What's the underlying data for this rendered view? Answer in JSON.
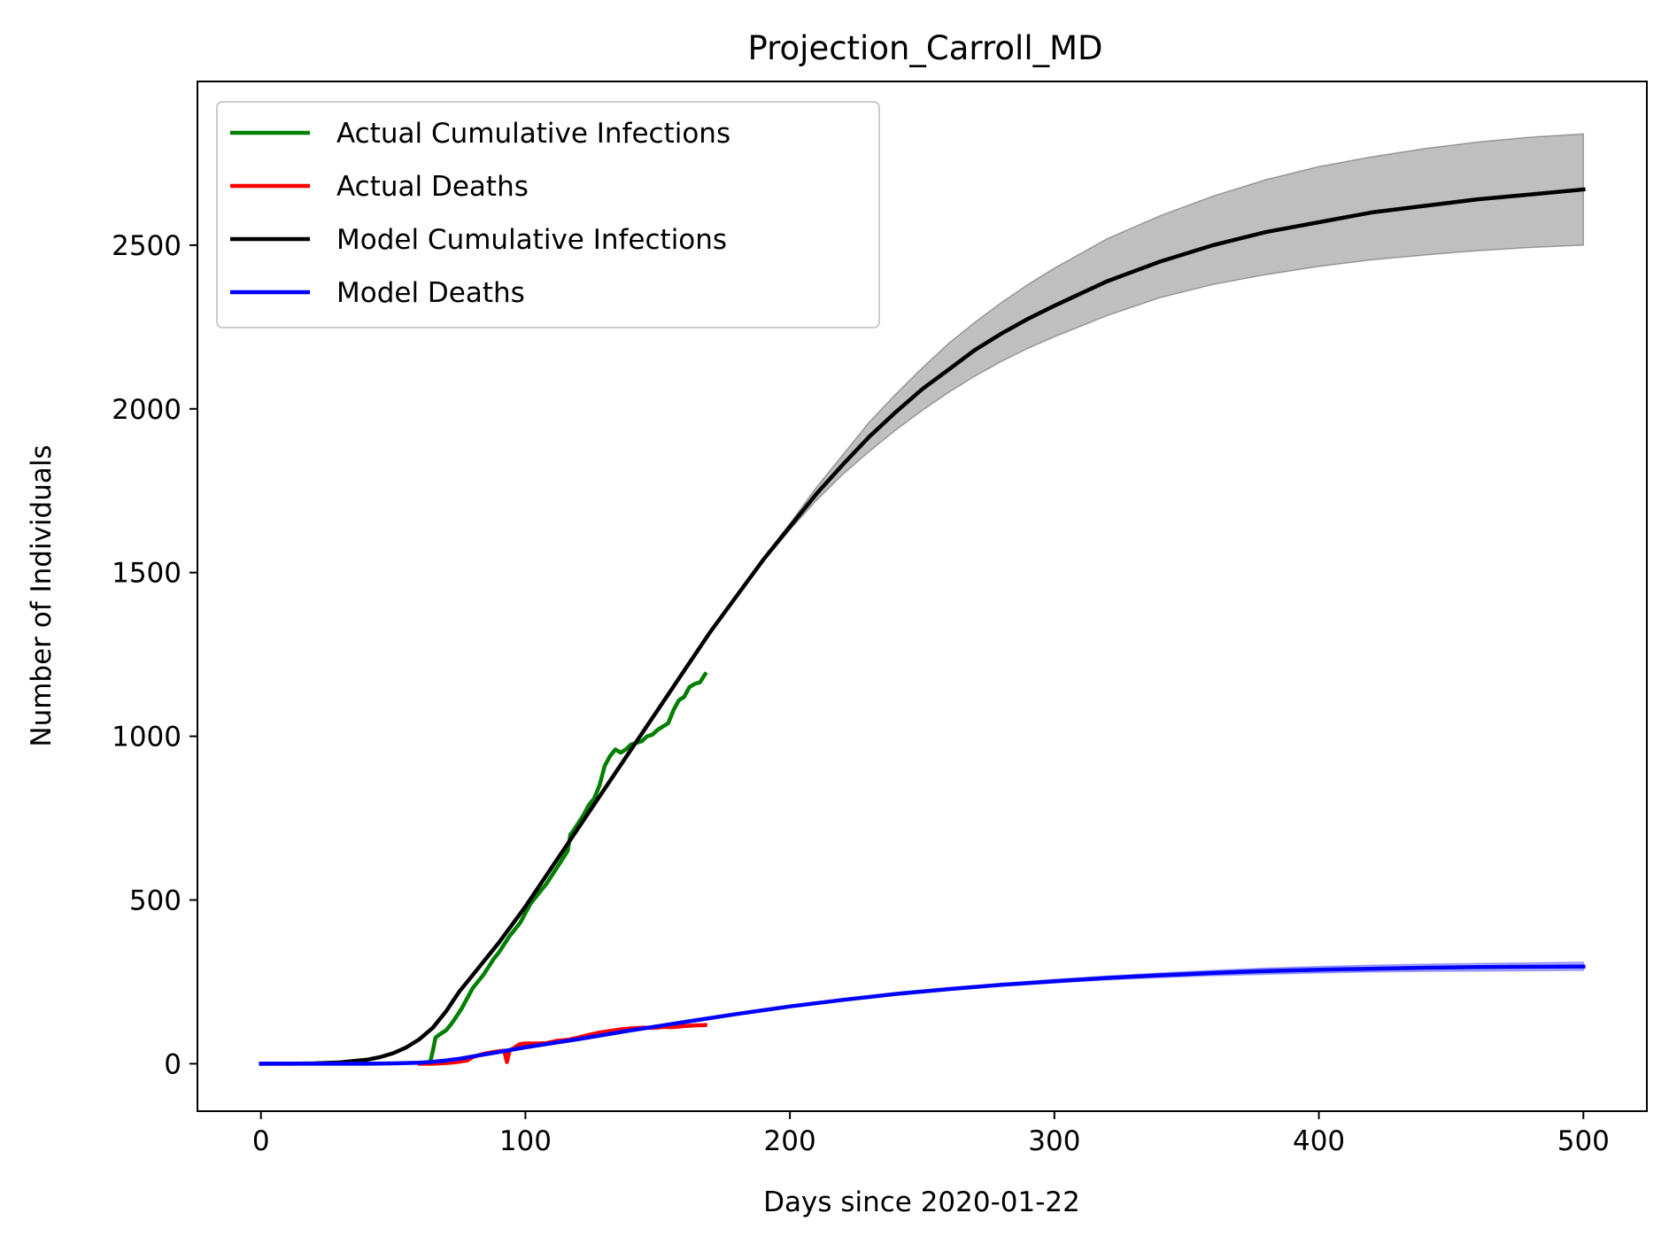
{
  "chart_data": {
    "type": "line",
    "title": "Projection_Carroll_MD",
    "xlabel": "Days since 2020-01-22",
    "ylabel": "Number of Individuals",
    "xlim": [
      -24,
      524
    ],
    "ylim": [
      -145,
      3000
    ],
    "xticks": [
      0,
      100,
      200,
      300,
      400,
      500
    ],
    "yticks": [
      0,
      500,
      1000,
      1500,
      2000,
      2500
    ],
    "grid": false,
    "legend_position": "top-left",
    "series": [
      {
        "name": "Actual Cumulative Infections",
        "color": "#008000",
        "x": [
          64,
          65,
          66,
          68,
          70,
          72,
          74,
          76,
          78,
          80,
          82,
          84,
          86,
          88,
          90,
          92,
          94,
          96,
          98,
          100,
          102,
          104,
          106,
          108,
          110,
          112,
          114,
          116,
          117,
          118,
          120,
          122,
          124,
          126,
          128,
          130,
          132,
          134,
          136,
          138,
          140,
          142,
          144,
          146,
          148,
          150,
          152,
          154,
          156,
          158,
          160,
          162,
          164,
          166,
          168
        ],
        "y": [
          5,
          40,
          80,
          92,
          102,
          122,
          145,
          170,
          200,
          230,
          250,
          270,
          295,
          320,
          340,
          365,
          390,
          410,
          430,
          460,
          490,
          510,
          530,
          550,
          575,
          600,
          625,
          650,
          700,
          710,
          735,
          760,
          790,
          810,
          850,
          910,
          940,
          960,
          950,
          960,
          975,
          980,
          985,
          1000,
          1005,
          1020,
          1030,
          1040,
          1080,
          1110,
          1120,
          1150,
          1160,
          1165,
          1190
        ]
      },
      {
        "name": "Actual Deaths",
        "color": "#ff0000",
        "x": [
          60,
          65,
          70,
          74,
          78,
          80,
          82,
          84,
          86,
          88,
          90,
          92,
          93,
          94,
          96,
          98,
          100,
          104,
          108,
          112,
          116,
          120,
          124,
          128,
          132,
          136,
          140,
          144,
          148,
          152,
          156,
          160,
          164,
          168
        ],
        "y": [
          0,
          0,
          2,
          5,
          10,
          20,
          25,
          30,
          33,
          36,
          38,
          40,
          5,
          40,
          50,
          60,
          62,
          62,
          63,
          70,
          73,
          80,
          88,
          95,
          100,
          105,
          108,
          110,
          110,
          112,
          112,
          115,
          117,
          118
        ]
      },
      {
        "name": "Model Cumulative Infections",
        "color": "#000000",
        "x": [
          0,
          10,
          20,
          30,
          40,
          45,
          50,
          55,
          60,
          65,
          70,
          75,
          80,
          90,
          100,
          110,
          120,
          130,
          140,
          150,
          160,
          170,
          180,
          190,
          200,
          210,
          220,
          230,
          240,
          250,
          260,
          270,
          280,
          290,
          300,
          320,
          340,
          360,
          380,
          400,
          420,
          440,
          460,
          480,
          500
        ],
        "y": [
          0,
          0,
          1,
          4,
          12,
          20,
          32,
          50,
          75,
          110,
          160,
          220,
          270,
          370,
          480,
          600,
          720,
          840,
          960,
          1080,
          1200,
          1320,
          1430,
          1540,
          1640,
          1740,
          1830,
          1915,
          1990,
          2060,
          2120,
          2180,
          2230,
          2275,
          2315,
          2390,
          2450,
          2500,
          2540,
          2570,
          2600,
          2620,
          2640,
          2655,
          2670
        ],
        "band_lower": [
          0,
          0,
          1,
          4,
          12,
          20,
          32,
          50,
          75,
          110,
          160,
          220,
          270,
          370,
          480,
          600,
          720,
          840,
          960,
          1080,
          1200,
          1320,
          1430,
          1535,
          1630,
          1720,
          1800,
          1870,
          1935,
          1995,
          2050,
          2100,
          2145,
          2185,
          2220,
          2285,
          2340,
          2380,
          2410,
          2435,
          2455,
          2470,
          2483,
          2493,
          2500
        ],
        "band_upper": [
          0,
          0,
          1,
          4,
          12,
          20,
          32,
          50,
          75,
          110,
          160,
          220,
          270,
          370,
          480,
          600,
          720,
          840,
          960,
          1080,
          1200,
          1320,
          1435,
          1545,
          1650,
          1760,
          1860,
          1960,
          2045,
          2125,
          2200,
          2265,
          2325,
          2380,
          2430,
          2520,
          2590,
          2650,
          2700,
          2740,
          2770,
          2795,
          2815,
          2830,
          2840
        ]
      },
      {
        "name": "Model Deaths",
        "color": "#0000ff",
        "x": [
          0,
          20,
          40,
          50,
          55,
          60,
          65,
          70,
          75,
          80,
          90,
          100,
          120,
          140,
          160,
          180,
          200,
          220,
          240,
          260,
          280,
          300,
          320,
          340,
          360,
          380,
          400,
          420,
          440,
          460,
          480,
          500
        ],
        "y": [
          0,
          0,
          0,
          1,
          2,
          3,
          6,
          10,
          15,
          22,
          36,
          50,
          75,
          102,
          127,
          152,
          175,
          195,
          213,
          228,
          241,
          252,
          262,
          270,
          277,
          283,
          287,
          290,
          293,
          295,
          296,
          297
        ],
        "band_lower": [
          0,
          0,
          0,
          1,
          2,
          3,
          6,
          10,
          15,
          22,
          36,
          50,
          75,
          102,
          127,
          152,
          175,
          194,
          211,
          225,
          237,
          247,
          256,
          263,
          269,
          273,
          277,
          280,
          282,
          283,
          284,
          285
        ],
        "band_upper": [
          0,
          0,
          0,
          1,
          2,
          3,
          6,
          10,
          15,
          22,
          36,
          50,
          75,
          102,
          127,
          152,
          175,
          196,
          215,
          231,
          245,
          257,
          268,
          277,
          285,
          292,
          297,
          301,
          304,
          306,
          308,
          310
        ]
      }
    ]
  }
}
